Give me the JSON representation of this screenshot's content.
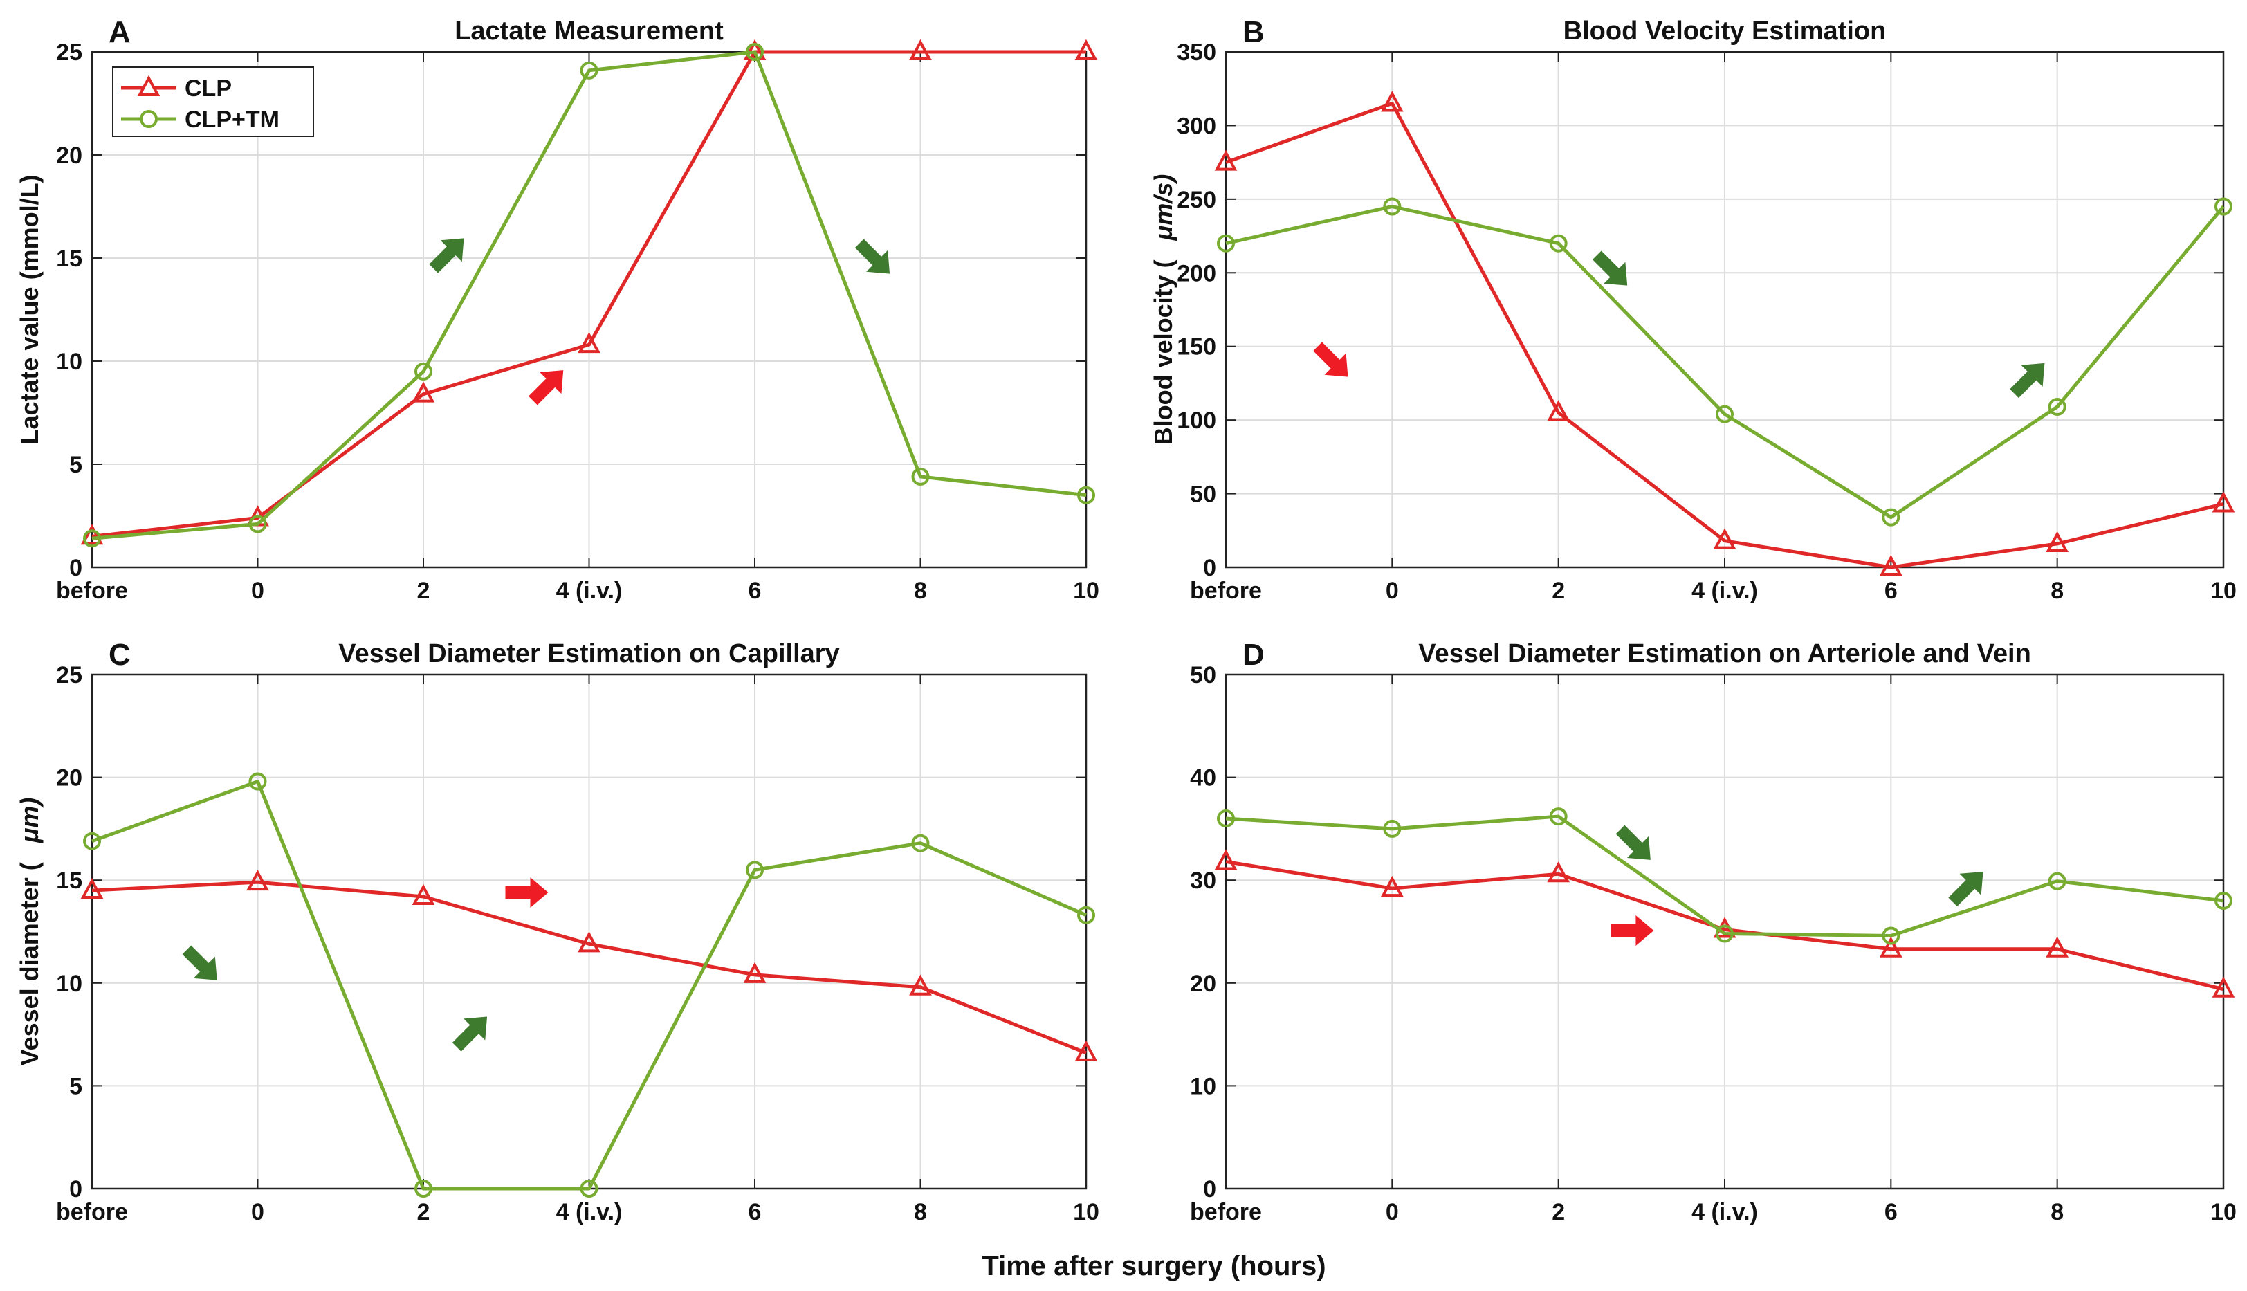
{
  "figure": {
    "xlabel": "Time after surgery (hours)"
  },
  "legend": {
    "entries": [
      {
        "name": "CLP",
        "color": "#e02828",
        "marker": "triangle"
      },
      {
        "name": "CLP+TM",
        "color": "#77ac30",
        "marker": "circle"
      }
    ]
  },
  "chart_data": [
    {
      "letter": "A",
      "type": "line",
      "title": "Lactate Measurement",
      "xlabel": "",
      "ylabel": "Lactate value (mmol/L)",
      "ylabel_parts": [
        "Lactate value (mmol/L)"
      ],
      "categories": [
        "before",
        "0",
        "2",
        "4 (i.v.)",
        "6",
        "8",
        "10"
      ],
      "ylim": [
        0,
        25
      ],
      "yticks": [
        0,
        5,
        10,
        15,
        20,
        25
      ],
      "grid": true,
      "legend": "top-left",
      "series": [
        {
          "name": "CLP",
          "values": [
            1.5,
            2.4,
            8.4,
            10.8,
            25,
            25,
            25
          ]
        },
        {
          "name": "CLP+TM",
          "values": [
            1.4,
            2.1,
            9.5,
            24.1,
            25,
            4.4,
            3.5
          ]
        }
      ],
      "annotations": [
        {
          "kind": "arrow",
          "color": "green",
          "direction": "up-right",
          "cat": 2.15,
          "val": 15.2
        },
        {
          "kind": "arrow",
          "color": "red",
          "direction": "up-right",
          "cat": 2.75,
          "val": 8.8
        },
        {
          "kind": "arrow",
          "color": "green",
          "direction": "down-right",
          "cat": 4.72,
          "val": 15.0
        }
      ]
    },
    {
      "letter": "B",
      "type": "line",
      "title": "Blood Velocity Estimation",
      "xlabel": "",
      "ylabel": "Blood velocity ( μm/s)",
      "ylabel_parts": [
        "Blood velocity (",
        "μm/s)"
      ],
      "categories": [
        "before",
        "0",
        "2",
        "4 (i.v.)",
        "6",
        "8",
        "10"
      ],
      "ylim": [
        0,
        350
      ],
      "yticks": [
        0,
        50,
        100,
        150,
        200,
        250,
        300,
        350
      ],
      "grid": true,
      "series": [
        {
          "name": "CLP",
          "values": [
            275,
            315,
            105,
            18,
            0,
            16,
            43
          ]
        },
        {
          "name": "CLP+TM",
          "values": [
            220,
            245,
            220,
            104,
            34,
            109,
            245
          ]
        }
      ],
      "annotations": [
        {
          "kind": "arrow",
          "color": "green",
          "direction": "down-right",
          "cat": 2.32,
          "val": 202
        },
        {
          "kind": "arrow",
          "color": "red",
          "direction": "down-right",
          "cat": 0.64,
          "val": 140
        },
        {
          "kind": "arrow",
          "color": "green",
          "direction": "up-right",
          "cat": 4.83,
          "val": 128
        }
      ]
    },
    {
      "letter": "C",
      "type": "line",
      "title": "Vessel Diameter Estimation on Capillary",
      "xlabel": "",
      "ylabel": "Vessel diameter ( μm)",
      "ylabel_parts": [
        "Vessel diameter (",
        "μm)"
      ],
      "categories": [
        "before",
        "0",
        "2",
        "4 (i.v.)",
        "6",
        "8",
        "10"
      ],
      "ylim": [
        0,
        25
      ],
      "yticks": [
        0,
        5,
        10,
        15,
        20,
        25
      ],
      "grid": true,
      "series": [
        {
          "name": "CLP",
          "values": [
            14.5,
            14.9,
            14.2,
            11.9,
            10.4,
            9.8,
            6.6
          ]
        },
        {
          "name": "CLP+TM",
          "values": [
            16.9,
            19.8,
            0,
            0,
            15.5,
            16.8,
            13.3
          ]
        }
      ],
      "annotations": [
        {
          "kind": "arrow",
          "color": "red",
          "direction": "right",
          "cat": 2.62,
          "val": 14.4
        },
        {
          "kind": "arrow",
          "color": "green",
          "direction": "down-right",
          "cat": 0.66,
          "val": 10.9
        },
        {
          "kind": "arrow",
          "color": "green",
          "direction": "up-right",
          "cat": 2.29,
          "val": 7.6
        }
      ]
    },
    {
      "letter": "D",
      "type": "line",
      "title": "Vessel Diameter Estimation on Arteriole and Vein",
      "xlabel": "",
      "ylabel": "",
      "ylabel_parts": [],
      "categories": [
        "before",
        "0",
        "2",
        "4 (i.v.)",
        "6",
        "8",
        "10"
      ],
      "ylim": [
        0,
        50
      ],
      "yticks": [
        0,
        10,
        20,
        30,
        40,
        50
      ],
      "grid": true,
      "series": [
        {
          "name": "CLP",
          "values": [
            31.8,
            29.2,
            30.6,
            25.2,
            23.3,
            23.3,
            19.4
          ]
        },
        {
          "name": "CLP+TM",
          "values": [
            36.0,
            35.0,
            36.2,
            24.8,
            24.6,
            29.9,
            28.0
          ]
        }
      ],
      "annotations": [
        {
          "kind": "arrow",
          "color": "green",
          "direction": "down-right",
          "cat": 2.46,
          "val": 33.5
        },
        {
          "kind": "arrow",
          "color": "red",
          "direction": "right",
          "cat": 2.44,
          "val": 25.1
        },
        {
          "kind": "arrow",
          "color": "green",
          "direction": "up-right",
          "cat": 4.46,
          "val": 29.3
        }
      ]
    }
  ],
  "colors": {
    "red": "#e02828",
    "green": "#77ac30",
    "red_arrow": "#ee1c24",
    "green_arrow": "#3f7b2e",
    "grid": "#dcdcdc",
    "axis": "#222222"
  }
}
